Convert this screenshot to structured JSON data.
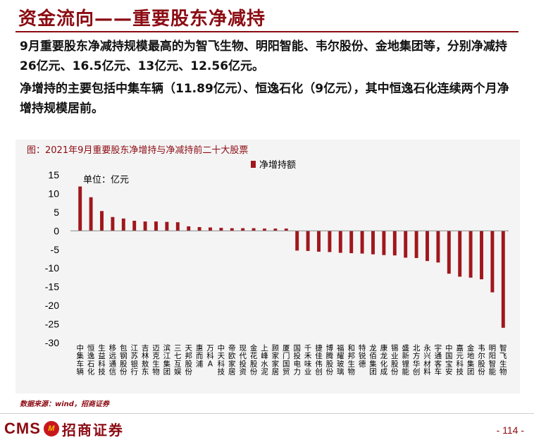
{
  "slide": {
    "title": "资金流向——重要股东净减持",
    "paragraph1": "9月重要股东净减持规模最高的为智飞生物、明阳智能、韦尔股份、金地集团等，分别净减持26亿元、16.5亿元、13亿元、12.56亿元。",
    "paragraph2": "净增持的主要包括中集车辆（11.89亿元）、恒逸石化（9亿元），其中恒逸石化连续两个月净增持规模居前。",
    "source": "数据来源：wind，招商证券",
    "page_number": "- 114 -"
  },
  "logo": {
    "cms": "CMS",
    "mark": "M",
    "name_cn": "招商证券"
  },
  "colors": {
    "accent": "#8b0b12",
    "bar": "#a0171c",
    "chart_bg": "#f4f4f4"
  },
  "chart_data": {
    "type": "bar",
    "title": "图：2021年9月重要股东净增持与净减持前二十大股票",
    "unit_label": "单位：亿元",
    "legend": "净增持额",
    "legend_position": "top-right",
    "ylim": [
      -30,
      15
    ],
    "yticks": [
      15,
      10,
      5,
      0,
      -5,
      -10,
      -15,
      -20,
      -25,
      -30
    ],
    "grid": false,
    "categories": [
      "中集车辆",
      "恒逸石化",
      "生益科技",
      "移远通信",
      "包钢股份",
      "江苏银行",
      "吉林敖东",
      "迈克生物",
      "滨江集团",
      "三七互娱",
      "天邦股份",
      "惠而浦",
      "万科A",
      "中天科技",
      "帝欧家居",
      "现代投资",
      "金花股份",
      "上峰水泥",
      "顾家家居",
      "厦门国贸",
      "国投电力",
      "千禾味业",
      "捷佳伟创",
      "博腾股份",
      "福耀玻璃",
      "和邦生物",
      "特锐德",
      "龙佰集团",
      "康龙化成",
      "锡业股份",
      "盛新锂能",
      "北方华创",
      "永兴材料",
      "宇通客车",
      "中国宝安",
      "嘉元科技",
      "金地集团",
      "韦尔股份",
      "明阳智能",
      "智飞生物"
    ],
    "series": [
      {
        "name": "净增持额",
        "values": [
          11.89,
          9.0,
          5.3,
          3.7,
          3.3,
          2.7,
          2.5,
          2.5,
          2.4,
          2.3,
          1.2,
          1.0,
          0.9,
          0.8,
          0.7,
          0.7,
          0.7,
          0.6,
          0.6,
          0.6,
          -5.3,
          -5.4,
          -5.6,
          -5.7,
          -5.9,
          -6.0,
          -6.1,
          -6.3,
          -6.5,
          -6.6,
          -7.2,
          -7.3,
          -8.1,
          -8.5,
          -11.5,
          -12.3,
          -12.56,
          -13.0,
          -16.5,
          -26.0
        ]
      }
    ]
  }
}
